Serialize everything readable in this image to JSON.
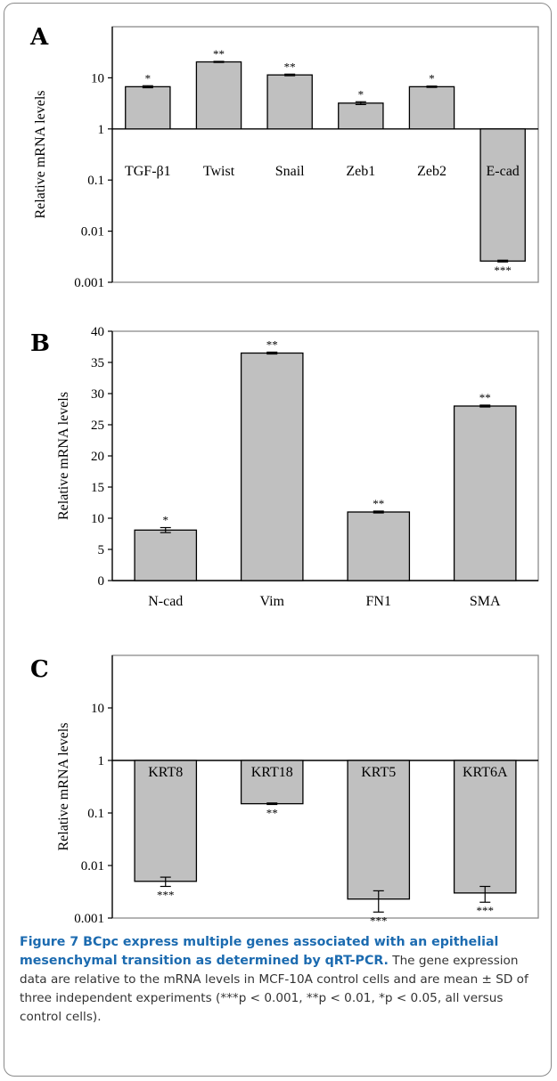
{
  "caption": {
    "title": "Figure 7 BCpc express multiple genes associated with an epithelial mesenchymal transition as determined by qRT-PCR.",
    "body": "The gene expression data are relative to the mRNA levels in MCF-10A control cells and are mean ± SD of three independent experiments (***p < 0.001, **p < 0.01, *p < 0.05, all versus control cells)."
  },
  "chart_data": [
    {
      "panel": "A",
      "type": "bar",
      "scale": "log",
      "ylabel": "Relative mRNA levels",
      "ylim": [
        0.001,
        100
      ],
      "ticks": [
        {
          "value": 10,
          "label": "10"
        },
        {
          "value": 1,
          "label": "1"
        },
        {
          "value": 0.1,
          "label": "0.1"
        },
        {
          "value": 0.01,
          "label": "0.01"
        },
        {
          "value": 0.001,
          "label": "0.001"
        }
      ],
      "categories": [
        "TGF-β1",
        "Twist",
        "Snail",
        "Zeb1",
        "Zeb2",
        "E-cad"
      ],
      "values": [
        6.7,
        20.5,
        11.4,
        3.2,
        6.7,
        0.0026
      ],
      "errors": [
        0.3,
        0.5,
        0.4,
        0.2,
        0.2,
        0.0001
      ],
      "significance": [
        "*",
        "**",
        "**",
        "*",
        "*",
        "***"
      ]
    },
    {
      "panel": "B",
      "type": "bar",
      "scale": "linear",
      "ylabel": "Relative mRNA levels",
      "ylim": [
        0,
        40
      ],
      "ticks": [
        {
          "value": 0,
          "label": "0"
        },
        {
          "value": 5,
          "label": "5"
        },
        {
          "value": 10,
          "label": "10"
        },
        {
          "value": 15,
          "label": "15"
        },
        {
          "value": 20,
          "label": "20"
        },
        {
          "value": 25,
          "label": "25"
        },
        {
          "value": 30,
          "label": "30"
        },
        {
          "value": 35,
          "label": "35"
        },
        {
          "value": 40,
          "label": "40"
        }
      ],
      "categories": [
        "N-cad",
        "Vim",
        "FN1",
        "SMA"
      ],
      "values": [
        8.1,
        36.5,
        11.0,
        28.0
      ],
      "errors": [
        0.4,
        0.15,
        0.15,
        0.15
      ],
      "significance": [
        "*",
        "**",
        "**",
        "**"
      ]
    },
    {
      "panel": "C",
      "type": "bar",
      "scale": "log",
      "ylabel": "Relative mRNA levels",
      "ylim": [
        0.001,
        100
      ],
      "ticks": [
        {
          "value": 10,
          "label": "10"
        },
        {
          "value": 1,
          "label": "1"
        },
        {
          "value": 0.1,
          "label": "0.1"
        },
        {
          "value": 0.01,
          "label": "0.01"
        },
        {
          "value": 0.001,
          "label": "0.001"
        }
      ],
      "categories": [
        "KRT8",
        "KRT18",
        "KRT5",
        "KRT6A"
      ],
      "values": [
        0.005,
        0.15,
        0.0023,
        0.003
      ],
      "errors": [
        0.001,
        0.005,
        0.001,
        0.001
      ],
      "significance": [
        "***",
        "**",
        "***",
        "***"
      ]
    }
  ]
}
